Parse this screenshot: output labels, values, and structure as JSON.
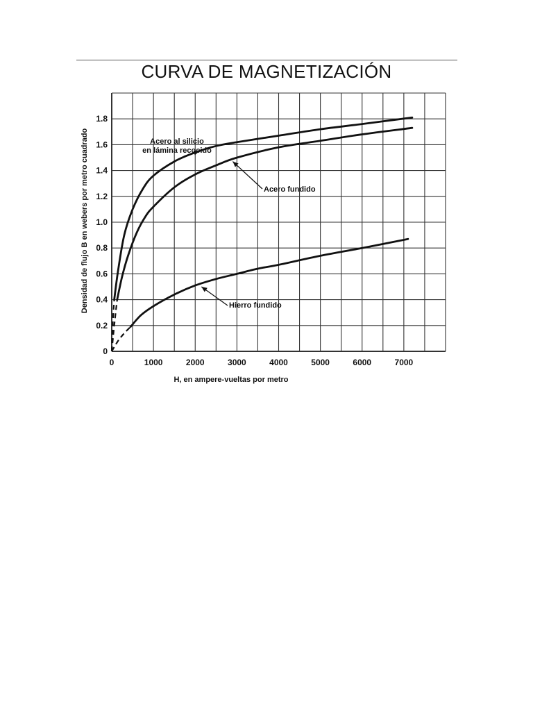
{
  "page": {
    "title": "CURVA DE MAGNETIZACIÓN"
  },
  "chart_data": {
    "type": "line",
    "title": "CURVA DE MAGNETIZACIÓN",
    "xlabel": "H, en ampere-vueltas por metro",
    "ylabel": "Densidad de flujo B en webers por metro cuadrado",
    "xlim": [
      0,
      8000
    ],
    "ylim": [
      0,
      2.0
    ],
    "x_ticks": [
      0,
      1000,
      2000,
      3000,
      4000,
      5000,
      6000,
      7000
    ],
    "y_ticks": [
      0,
      0.2,
      0.4,
      0.6,
      0.8,
      1.0,
      1.2,
      1.4,
      1.6,
      1.8
    ],
    "x_tick_labels": [
      "0",
      "1000",
      "2000",
      "3000",
      "4000",
      "5000",
      "6000",
      "7000"
    ],
    "y_tick_labels": [
      "0",
      "0.2",
      "0.4",
      "0.6",
      "0.8",
      "1.0",
      "1.2",
      "1.4",
      "1.6",
      "1.8"
    ],
    "grid": true,
    "ink_color": "#111111",
    "grid_color": "#333333",
    "series": [
      {
        "label": "Acero al silicio\nen lámina recocido",
        "dashed_x": [
          0,
          30,
          60
        ],
        "dashed_y": [
          0,
          0.25,
          0.4
        ],
        "x": [
          60,
          150,
          300,
          500,
          750,
          1000,
          1500,
          2000,
          2500,
          3000,
          4000,
          5000,
          6000,
          7200
        ],
        "y": [
          0.4,
          0.62,
          0.9,
          1.1,
          1.26,
          1.36,
          1.47,
          1.54,
          1.59,
          1.62,
          1.67,
          1.72,
          1.76,
          1.81
        ]
      },
      {
        "label": "Acero fundido",
        "dashed_x": [
          0,
          60,
          130
        ],
        "dashed_y": [
          0,
          0.2,
          0.4
        ],
        "x": [
          130,
          250,
          400,
          600,
          800,
          1000,
          1500,
          2000,
          2500,
          3000,
          4000,
          5000,
          6000,
          7200
        ],
        "y": [
          0.4,
          0.58,
          0.75,
          0.92,
          1.04,
          1.12,
          1.27,
          1.37,
          1.44,
          1.5,
          1.58,
          1.63,
          1.68,
          1.73
        ]
      },
      {
        "label": "Hierro fundido",
        "dashed_x": [
          0,
          150,
          300,
          450
        ],
        "dashed_y": [
          0,
          0.08,
          0.14,
          0.19
        ],
        "x": [
          450,
          700,
          1000,
          1500,
          2000,
          2500,
          3000,
          3500,
          4000,
          5000,
          6000,
          7100
        ],
        "y": [
          0.19,
          0.28,
          0.35,
          0.44,
          0.51,
          0.56,
          0.6,
          0.64,
          0.67,
          0.74,
          0.8,
          0.87
        ]
      }
    ],
    "annotations": [
      {
        "lines": [
          "Acero al silicio",
          "en lámina recocido"
        ],
        "target_x": 2100,
        "target_y": 1.55
      },
      {
        "lines": [
          "Acero fundido"
        ],
        "target_x": 2900,
        "target_y": 1.47
      },
      {
        "lines": [
          "Hierro fundido"
        ],
        "target_x": 2150,
        "target_y": 0.5
      }
    ]
  }
}
